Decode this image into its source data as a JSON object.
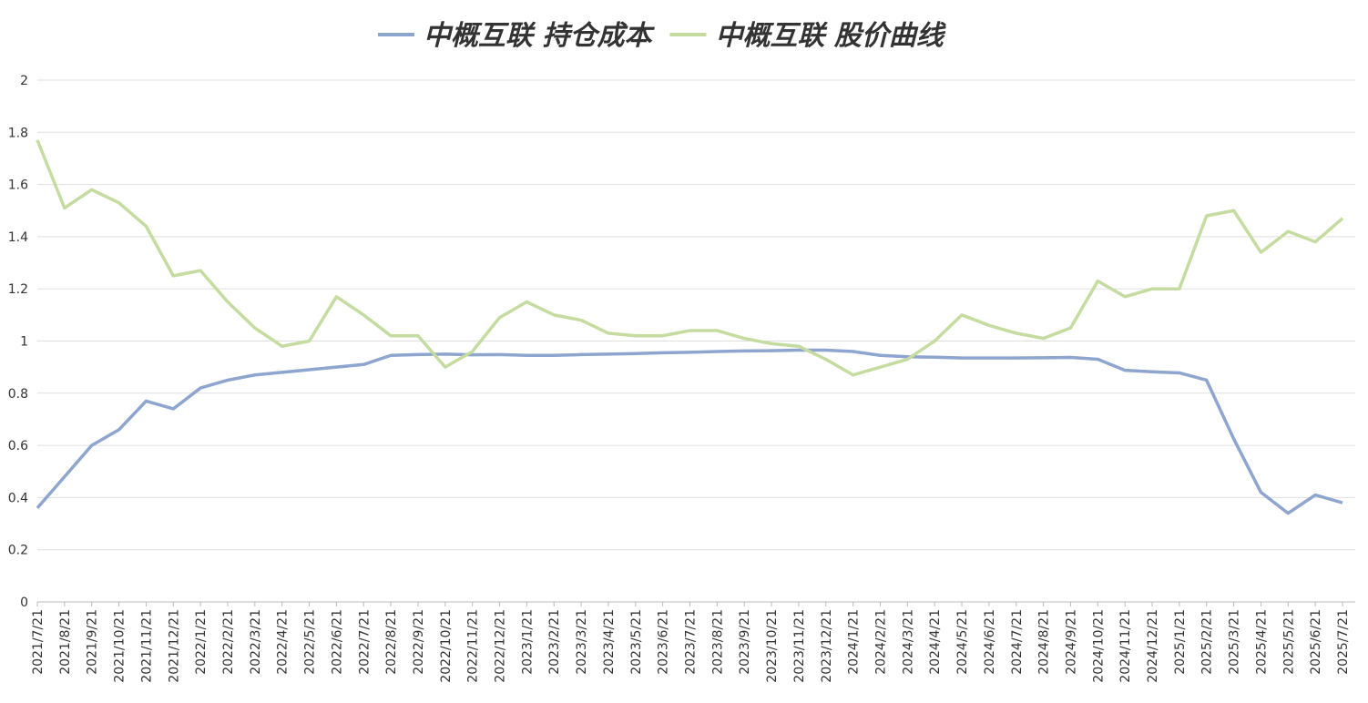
{
  "chart_data": {
    "type": "line",
    "categories": [
      "2021/7/21",
      "2021/8/21",
      "2021/9/21",
      "2021/10/21",
      "2021/11/21",
      "2021/12/21",
      "2022/1/21",
      "2022/2/21",
      "2022/3/21",
      "2022/4/21",
      "2022/5/21",
      "2022/6/21",
      "2022/7/21",
      "2022/8/21",
      "2022/9/21",
      "2022/10/21",
      "2022/11/21",
      "2022/12/21",
      "2023/1/21",
      "2023/2/21",
      "2023/3/21",
      "2023/4/21",
      "2023/5/21",
      "2023/6/21",
      "2023/7/21",
      "2023/8/21",
      "2023/9/21",
      "2023/10/21",
      "2023/11/21",
      "2023/12/21",
      "2024/1/21",
      "2024/2/21",
      "2024/3/21",
      "2024/4/21",
      "2024/5/21",
      "2024/6/21",
      "2024/7/21",
      "2024/8/21",
      "2024/9/21",
      "2024/10/21",
      "2024/11/21",
      "2024/12/21",
      "2025/1/21",
      "2025/2/21",
      "2025/3/21",
      "2025/4/21",
      "2025/5/21",
      "2025/6/21",
      "2025/7/21"
    ],
    "series": [
      {
        "name": "中概互联 持仓成本",
        "color": "#8ea5cf",
        "values": [
          0.36,
          0.48,
          0.6,
          0.66,
          0.77,
          0.74,
          0.82,
          0.85,
          0.87,
          0.88,
          0.89,
          0.9,
          0.91,
          0.945,
          0.948,
          0.95,
          0.947,
          0.948,
          0.945,
          0.945,
          0.948,
          0.95,
          0.952,
          0.955,
          0.957,
          0.96,
          0.962,
          0.963,
          0.965,
          0.965,
          0.96,
          0.945,
          0.94,
          0.938,
          0.935,
          0.935,
          0.935,
          0.936,
          0.937,
          0.93,
          0.888,
          0.882,
          0.878,
          0.85,
          0.625,
          0.42,
          0.34,
          0.41,
          0.38
        ]
      },
      {
        "name": "中概互联 股价曲线",
        "color": "#c5dca0",
        "values": [
          1.77,
          1.51,
          1.58,
          1.53,
          1.44,
          1.25,
          1.27,
          1.15,
          1.05,
          0.98,
          1.0,
          1.17,
          1.1,
          1.02,
          1.02,
          0.9,
          0.96,
          1.09,
          1.15,
          1.1,
          1.08,
          1.03,
          1.02,
          1.02,
          1.04,
          1.04,
          1.01,
          0.99,
          0.98,
          0.93,
          0.87,
          0.9,
          0.93,
          1.0,
          1.1,
          1.06,
          1.03,
          1.01,
          1.05,
          1.23,
          1.17,
          1.2,
          1.2,
          1.48,
          1.5,
          1.34,
          1.42,
          1.38,
          1.47
        ]
      }
    ],
    "ylim": [
      0,
      2
    ],
    "yticks": [
      0,
      0.2,
      0.4,
      0.6,
      0.8,
      1,
      1.2,
      1.4,
      1.6,
      1.8,
      2
    ],
    "grid": true
  }
}
